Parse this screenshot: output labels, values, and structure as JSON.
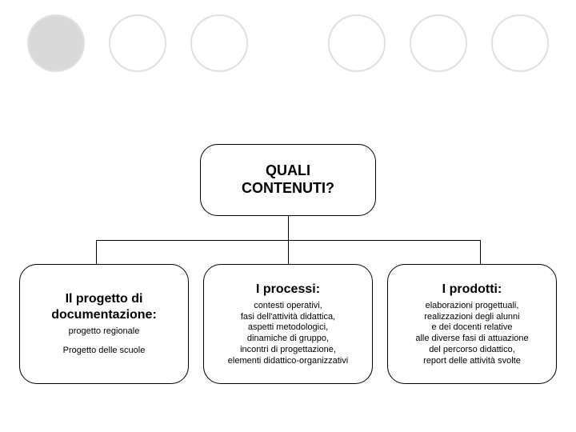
{
  "circles": {
    "count": 6,
    "filled_index": 0,
    "fill_color": "#d9d9d9",
    "border_color": "#e0e0e0",
    "gap_after": [
      false,
      false,
      true,
      false,
      false
    ]
  },
  "diagram": {
    "root": {
      "title": "QUALI\nCONTENUTI?"
    },
    "children": [
      {
        "title": "Il progetto di\ndocumentazione:",
        "sub": "progetto regionale",
        "sub2": "Progetto delle scuole"
      },
      {
        "title": "I processi:",
        "sub": "contesti operativi,\nfasi dell'attività didattica,\naspetti metodologici,\ndinamiche di gruppo,\nincontri di progettazione,\nelementi didattico-organizzativi"
      },
      {
        "title": "I prodotti:",
        "sub": "elaborazioni progettuali,\nrealizzazioni degli alunni\ne dei docenti relative\nalle diverse fasi di attuazione\ndel percorso didattico,\nreport delle attività svolte"
      }
    ],
    "connector_x": [
      120,
      360,
      600
    ]
  },
  "colors": {
    "border": "#000000",
    "background": "#ffffff"
  }
}
